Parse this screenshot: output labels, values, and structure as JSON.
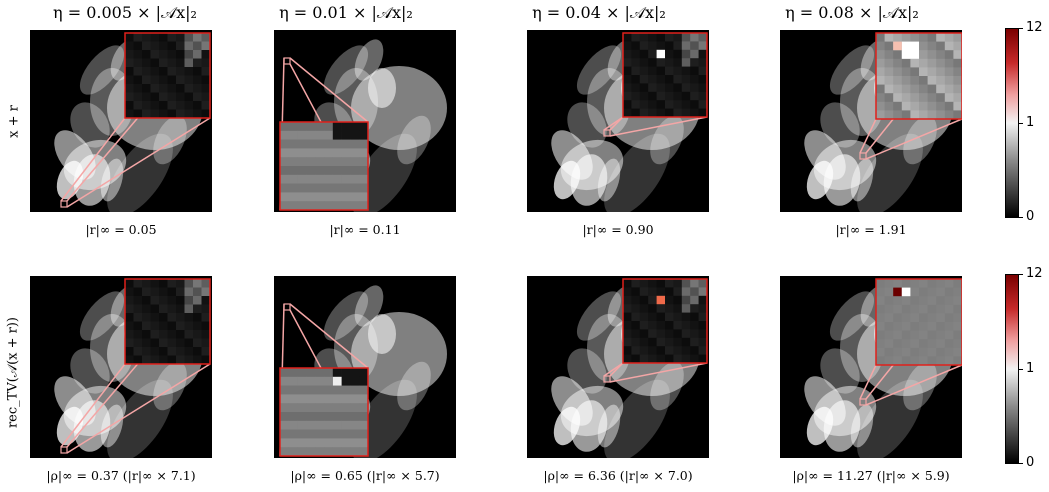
{
  "column_titles": [
    "η = 0.005 × |𝒜x|₂",
    "η = 0.01 × |𝒜x|₂",
    "η = 0.04 × |𝒜x|₂",
    "η = 0.08 × |𝒜x|₂"
  ],
  "row_labels": [
    "x + r",
    "rec_TV(𝒜(x + r))"
  ],
  "captions_row1": [
    "|r|∞ = 0.05",
    "|r|∞ = 0.11",
    "|r|∞ = 0.90",
    "|r|∞ = 1.91"
  ],
  "captions_row2": [
    "|ρ|∞ = 0.37   (|r|∞ × 7.1)",
    "|ρ|∞ = 0.65   (|r|∞ × 5.7)",
    "|ρ|∞ = 6.36   (|r|∞ × 7.0)",
    "|ρ|∞ = 11.27   (|r|∞ × 5.9)"
  ],
  "colorbar": {
    "ticks": [
      "12",
      "1",
      "0"
    ],
    "colors": [
      "#8b0000",
      "#e8e8e8",
      "#000000"
    ]
  },
  "accent_color": "#e0201b",
  "connector_color": "#f4a6a6"
}
